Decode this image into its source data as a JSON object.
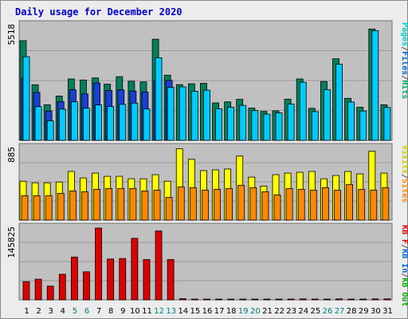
{
  "chart_data": [
    {
      "type": "bar",
      "title": "Daily usage for December 2020",
      "panel": "top",
      "ymax_label": "5518",
      "ymax": 5518,
      "axis_labels": [
        "Pages",
        "/",
        "Files",
        "/",
        "Hits"
      ],
      "axis_label_colors": [
        "#00cccc",
        "#555555",
        "#0066cc",
        "#555555",
        "#00aa66"
      ],
      "series": [
        {
          "name": "Hits",
          "color": "#00805c",
          "values": [
            4790,
            2670,
            1710,
            2130,
            2950,
            2900,
            3000,
            2700,
            3060,
            2840,
            2810,
            4860,
            3130,
            2680,
            2720,
            2740,
            1800,
            1850,
            1970,
            1550,
            1390,
            1420,
            1980,
            2950,
            1540,
            2830,
            3920,
            2020,
            1590,
            5350,
            1710
          ]
        },
        {
          "name": "Files",
          "color": "#1a3fd6",
          "values": [
            3000,
            2300,
            1410,
            1860,
            2430,
            2230,
            2760,
            2400,
            2430,
            2370,
            2320,
            2860,
            2880,
            null,
            null,
            null,
            null,
            null,
            null,
            null,
            null,
            null,
            null,
            null,
            null,
            null,
            null,
            null,
            null,
            null,
            null
          ]
        },
        {
          "name": "Pages",
          "color": "#00ccff",
          "values": [
            4020,
            1620,
            940,
            1500,
            1850,
            1550,
            1700,
            1630,
            1730,
            1790,
            1510,
            3970,
            2550,
            2570,
            2360,
            2410,
            1520,
            1590,
            1680,
            1430,
            1260,
            1320,
            1740,
            2790,
            1380,
            2440,
            3660,
            1840,
            1410,
            5270,
            1580
          ]
        }
      ]
    },
    {
      "type": "bar",
      "panel": "middle",
      "ymax_label": "885",
      "ymax": 885,
      "axis_labels": [
        "Visits",
        "/",
        "Sites"
      ],
      "axis_label_colors": [
        "#cccc00",
        "#555555",
        "#ff8800"
      ],
      "series": [
        {
          "name": "Visits",
          "color": "#ffff00",
          "values": [
            480,
            460,
            460,
            470,
            600,
            520,
            580,
            540,
            540,
            510,
            510,
            560,
            480,
            880,
            750,
            610,
            620,
            630,
            790,
            530,
            420,
            560,
            580,
            590,
            600,
            510,
            550,
            600,
            570,
            850,
            580
          ]
        },
        {
          "name": "Sites",
          "color": "#ff8800",
          "values": [
            300,
            300,
            300,
            330,
            360,
            350,
            380,
            390,
            390,
            390,
            360,
            370,
            280,
            410,
            400,
            370,
            380,
            390,
            430,
            400,
            350,
            310,
            390,
            380,
            370,
            400,
            370,
            440,
            380,
            370,
            400
          ]
        }
      ]
    },
    {
      "type": "bar",
      "panel": "bottom",
      "ymax_label": "145825",
      "ymax": 145825,
      "axis_labels": [
        "KB F",
        "/",
        "KB In",
        "/",
        "KB Out"
      ],
      "axis_label_colors": [
        "#dd0000",
        "#555555",
        "#0066cc",
        "#555555",
        "#00aa00"
      ],
      "series": [
        {
          "name": "KB F",
          "color": "#dd0000",
          "values": [
            37000,
            42000,
            28000,
            52000,
            87000,
            57000,
            145825,
            83000,
            84000,
            125000,
            82000,
            140000,
            82000,
            2500,
            900,
            900,
            900,
            900,
            900,
            900,
            900,
            900,
            900,
            2000,
            900,
            900,
            2000,
            900,
            900,
            2000,
            2000
          ]
        }
      ]
    }
  ],
  "days": [
    "1",
    "2",
    "3",
    "4",
    "5",
    "6",
    "7",
    "8",
    "9",
    "10",
    "11",
    "12",
    "13",
    "14",
    "15",
    "16",
    "17",
    "18",
    "19",
    "20",
    "21",
    "22",
    "23",
    "24",
    "25",
    "26",
    "27",
    "28",
    "29",
    "30",
    "31"
  ],
  "weekend_days": [
    "5",
    "6",
    "12",
    "13",
    "19",
    "20",
    "26",
    "27"
  ],
  "colors": {
    "panel_bg": "#c0c0c0",
    "page_bg": "#ececec",
    "title": "#0000cc",
    "weekday_label": "#000000",
    "weekend_label": "#008080"
  }
}
